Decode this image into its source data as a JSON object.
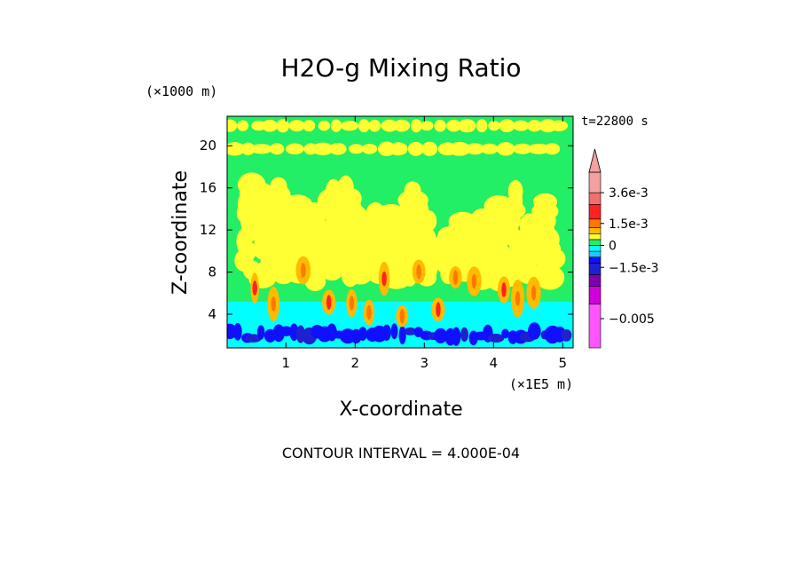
{
  "chart_data": {
    "type": "heatmap",
    "title": "H2O-g Mixing Ratio",
    "xlabel": "X-coordinate",
    "ylabel": "Z-coordinate",
    "x_unit_label": "(×1E5 m)",
    "y_unit_label": "(×1000 m)",
    "time_label": "t=22800 s",
    "footer": "CONTOUR INTERVAL = 4.000E-04",
    "xlim": [
      0.15,
      5.15
    ],
    "ylim": [
      0.8,
      22.8
    ],
    "x_ticks": [
      1,
      2,
      3,
      4,
      5
    ],
    "x_tick_labels": [
      "1",
      "2",
      "3",
      "4",
      "5"
    ],
    "y_ticks": [
      4,
      8,
      12,
      16,
      20
    ],
    "y_tick_labels": [
      "4",
      "8",
      "12",
      "16",
      "20"
    ],
    "colorbar": {
      "tick_labels": [
        "3.6e-3",
        "1.5e-3",
        "0",
        "−1.5e-3",
        "−0.005"
      ],
      "tick_values": [
        0.0036,
        0.0015,
        0.0,
        -0.0015,
        -0.005
      ],
      "bands": [
        {
          "color": "#ff55ff",
          "min": -0.007,
          "max": -0.004
        },
        {
          "color": "#d000d8",
          "min": -0.004,
          "max": -0.0028
        },
        {
          "color": "#8000b0",
          "min": -0.0028,
          "max": -0.002
        },
        {
          "color": "#2020d0",
          "min": -0.002,
          "max": -0.0012
        },
        {
          "color": "#1010ff",
          "min": -0.0012,
          "max": -0.0008
        },
        {
          "color": "#20c8ff",
          "min": -0.0008,
          "max": -0.0004
        },
        {
          "color": "#00ffff",
          "min": -0.0004,
          "max": 0.0
        },
        {
          "color": "#22ee66",
          "min": 0.0,
          "max": 0.0004
        },
        {
          "color": "#ffff33",
          "min": 0.0004,
          "max": 0.0008
        },
        {
          "color": "#ffbb00",
          "min": 0.0008,
          "max": 0.0012
        },
        {
          "color": "#ff7700",
          "min": 0.0012,
          "max": 0.0018
        },
        {
          "color": "#ff2222",
          "min": 0.0018,
          "max": 0.0028
        },
        {
          "color": "#f07070",
          "min": 0.0028,
          "max": 0.0036
        },
        {
          "color": "#f4a0a0",
          "min": 0.0036,
          "max": 0.005
        }
      ]
    },
    "field_colors": {
      "background": "#22ee66",
      "yellow": "#ffff33",
      "cyan": "#00ffff",
      "blue": "#1010ff",
      "dark_blue": "#2020d0",
      "orange": "#ff7700",
      "amber": "#ffbb00"
    },
    "field_regions": [
      {
        "level": "moist",
        "color": "yellow",
        "z_range": [
          19.2,
          22.5
        ],
        "x_range": [
          0.15,
          5.15
        ],
        "pattern": "bands"
      },
      {
        "level": "moist",
        "color": "yellow",
        "z_range": [
          6.0,
          16.0
        ],
        "x_range": [
          0.4,
          4.9
        ],
        "pattern": "plumes"
      },
      {
        "level": "dry",
        "color": "cyan",
        "z_range": [
          2.6,
          5.2
        ],
        "x_range": [
          0.15,
          5.15
        ],
        "pattern": "layer"
      },
      {
        "level": "very-dry",
        "color": "blue",
        "z_range": [
          0.8,
          3.0
        ],
        "x_range": [
          0.15,
          5.15
        ],
        "pattern": "patches"
      },
      {
        "level": "peak",
        "color": "orange",
        "z_range": [
          3.0,
          9.0
        ],
        "x_range": [
          0.5,
          4.6
        ],
        "pattern": "cores"
      }
    ]
  }
}
